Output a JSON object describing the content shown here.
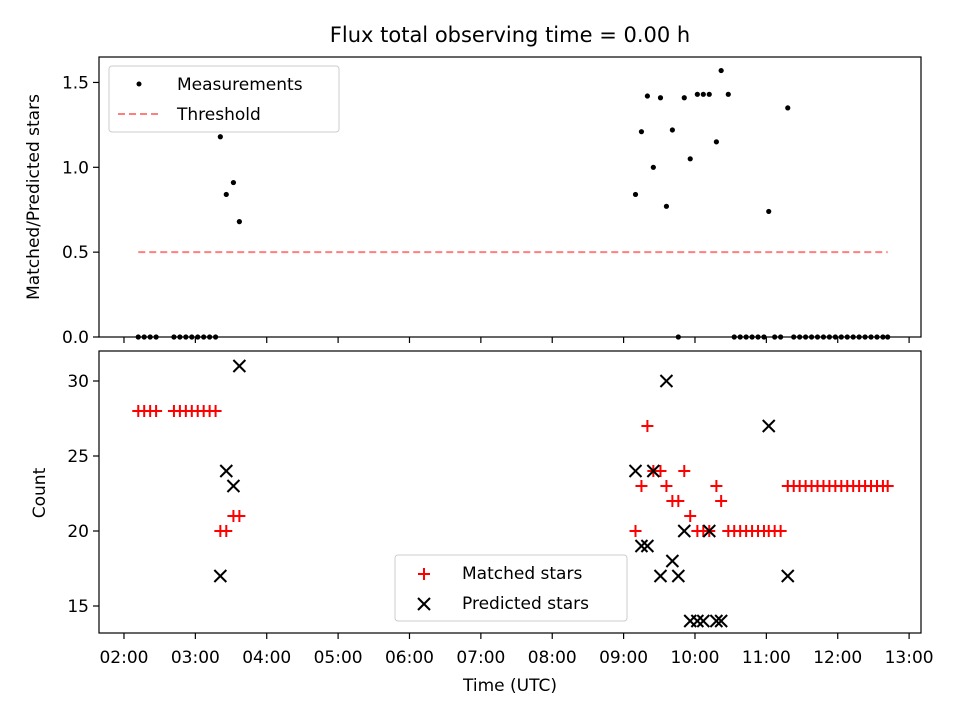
{
  "title": "Flux total observing time = 0.00 h",
  "xlabel": "Time (UTC)",
  "x_ticks": [
    "02:00",
    "03:00",
    "04:00",
    "05:00",
    "06:00",
    "07:00",
    "08:00",
    "09:00",
    "10:00",
    "11:00",
    "12:00",
    "13:00"
  ],
  "chart_data": [
    {
      "type": "scatter",
      "panel": "top",
      "ylabel": "Matched/Predicted stars",
      "ylim": [
        0,
        1.65
      ],
      "xlim": [
        "01:39",
        "13:10"
      ],
      "y_ticks": [
        "0.0",
        "0.5",
        "1.0",
        "1.5"
      ],
      "legend": {
        "position": "top-left",
        "entries": [
          "Measurements",
          "Threshold"
        ]
      },
      "series": [
        {
          "name": "Measurements",
          "color": "#000000",
          "marker": "dot",
          "points": [
            [
              "02:12",
              0
            ],
            [
              "02:17",
              0
            ],
            [
              "02:22",
              0
            ],
            [
              "02:27",
              0
            ],
            [
              "02:42",
              0
            ],
            [
              "02:47",
              0
            ],
            [
              "02:52",
              0
            ],
            [
              "02:57",
              0
            ],
            [
              "03:02",
              0
            ],
            [
              "03:07",
              0
            ],
            [
              "03:12",
              0
            ],
            [
              "03:17",
              0
            ],
            [
              "03:21",
              1.18
            ],
            [
              "03:26",
              0.84
            ],
            [
              "03:32",
              0.91
            ],
            [
              "03:37",
              0.68
            ],
            [
              "09:10",
              0.84
            ],
            [
              "09:15",
              1.21
            ],
            [
              "09:20",
              1.42
            ],
            [
              "09:25",
              1.0
            ],
            [
              "09:31",
              1.41
            ],
            [
              "09:36",
              0.77
            ],
            [
              "09:41",
              1.22
            ],
            [
              "09:46",
              0
            ],
            [
              "09:51",
              1.41
            ],
            [
              "09:56",
              1.05
            ],
            [
              "10:02",
              1.43
            ],
            [
              "10:07",
              1.43
            ],
            [
              "10:12",
              1.43
            ],
            [
              "10:18",
              1.15
            ],
            [
              "10:22",
              1.57
            ],
            [
              "10:28",
              1.43
            ],
            [
              "10:33",
              0
            ],
            [
              "10:38",
              0
            ],
            [
              "10:43",
              0
            ],
            [
              "10:48",
              0
            ],
            [
              "10:53",
              0
            ],
            [
              "10:58",
              0
            ],
            [
              "11:02",
              0.74
            ],
            [
              "11:07",
              0
            ],
            [
              "11:12",
              0
            ],
            [
              "11:18",
              1.35
            ],
            [
              "11:23",
              0
            ],
            [
              "11:28",
              0
            ],
            [
              "11:33",
              0
            ],
            [
              "11:38",
              0
            ],
            [
              "11:43",
              0
            ],
            [
              "11:48",
              0
            ],
            [
              "11:53",
              0
            ],
            [
              "11:58",
              0
            ],
            [
              "12:03",
              0
            ],
            [
              "12:08",
              0
            ],
            [
              "12:13",
              0
            ],
            [
              "12:18",
              0
            ],
            [
              "12:23",
              0
            ],
            [
              "12:28",
              0
            ],
            [
              "12:33",
              0
            ],
            [
              "12:38",
              0
            ],
            [
              "12:42",
              0
            ]
          ]
        },
        {
          "name": "Threshold",
          "color": "#ff7f7f",
          "style": "dashed",
          "points": [
            [
              "02:12",
              0.5
            ],
            [
              "12:42",
              0.5
            ]
          ]
        }
      ]
    },
    {
      "type": "scatter",
      "panel": "bottom",
      "ylabel": "Count",
      "ylim": [
        13.2,
        32
      ],
      "xlim": [
        "01:39",
        "13:10"
      ],
      "y_ticks": [
        "15",
        "20",
        "25",
        "30"
      ],
      "legend": {
        "position": "bottom-center",
        "entries": [
          "Matched stars",
          "Predicted stars"
        ]
      },
      "series": [
        {
          "name": "Matched stars",
          "color": "#ff0000",
          "marker": "plus",
          "points": [
            [
              "02:12",
              28
            ],
            [
              "02:17",
              28
            ],
            [
              "02:22",
              28
            ],
            [
              "02:27",
              28
            ],
            [
              "02:42",
              28
            ],
            [
              "02:47",
              28
            ],
            [
              "02:52",
              28
            ],
            [
              "02:57",
              28
            ],
            [
              "03:02",
              28
            ],
            [
              "03:07",
              28
            ],
            [
              "03:12",
              28
            ],
            [
              "03:17",
              28
            ],
            [
              "03:21",
              20
            ],
            [
              "03:26",
              20
            ],
            [
              "03:32",
              21
            ],
            [
              "03:37",
              21
            ],
            [
              "09:10",
              20
            ],
            [
              "09:15",
              23
            ],
            [
              "09:20",
              27
            ],
            [
              "09:25",
              24
            ],
            [
              "09:31",
              24
            ],
            [
              "09:36",
              23
            ],
            [
              "09:41",
              22
            ],
            [
              "09:46",
              22
            ],
            [
              "09:51",
              24
            ],
            [
              "09:56",
              21
            ],
            [
              "10:02",
              20
            ],
            [
              "10:07",
              20
            ],
            [
              "10:12",
              20
            ],
            [
              "10:18",
              23
            ],
            [
              "10:22",
              22
            ],
            [
              "10:28",
              20
            ],
            [
              "10:33",
              20
            ],
            [
              "10:38",
              20
            ],
            [
              "10:43",
              20
            ],
            [
              "10:48",
              20
            ],
            [
              "10:53",
              20
            ],
            [
              "10:58",
              20
            ],
            [
              "11:02",
              20
            ],
            [
              "11:07",
              20
            ],
            [
              "11:12",
              20
            ],
            [
              "11:18",
              23
            ],
            [
              "11:23",
              23
            ],
            [
              "11:28",
              23
            ],
            [
              "11:33",
              23
            ],
            [
              "11:38",
              23
            ],
            [
              "11:43",
              23
            ],
            [
              "11:48",
              23
            ],
            [
              "11:53",
              23
            ],
            [
              "11:58",
              23
            ],
            [
              "12:03",
              23
            ],
            [
              "12:08",
              23
            ],
            [
              "12:13",
              23
            ],
            [
              "12:18",
              23
            ],
            [
              "12:23",
              23
            ],
            [
              "12:28",
              23
            ],
            [
              "12:33",
              23
            ],
            [
              "12:38",
              23
            ],
            [
              "12:42",
              23
            ]
          ]
        },
        {
          "name": "Predicted stars",
          "color": "#000000",
          "marker": "x",
          "points": [
            [
              "03:21",
              17
            ],
            [
              "03:26",
              24
            ],
            [
              "03:32",
              23
            ],
            [
              "03:37",
              31
            ],
            [
              "09:10",
              24
            ],
            [
              "09:15",
              19
            ],
            [
              "09:20",
              19
            ],
            [
              "09:25",
              24
            ],
            [
              "09:31",
              17
            ],
            [
              "09:36",
              30
            ],
            [
              "09:41",
              18
            ],
            [
              "09:46",
              17
            ],
            [
              "09:51",
              20
            ],
            [
              "09:56",
              14
            ],
            [
              "10:02",
              14
            ],
            [
              "10:07",
              14
            ],
            [
              "10:12",
              20
            ],
            [
              "10:18",
              14
            ],
            [
              "10:22",
              14
            ],
            [
              "11:02",
              27
            ],
            [
              "11:18",
              17
            ]
          ]
        }
      ]
    }
  ]
}
